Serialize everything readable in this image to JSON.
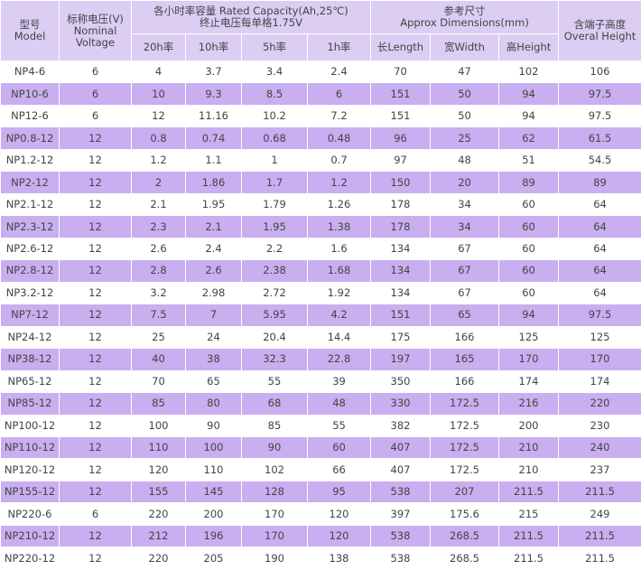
{
  "header": {
    "model": [
      "型号",
      "Model"
    ],
    "voltage": [
      "标称电压(V)",
      "Nominal",
      "Voltage"
    ],
    "capacity": [
      "各小时率容量 Rated Capacity(Ah,25℃)",
      "终止电压每单格1.75V"
    ],
    "dimensions": [
      "参考尺寸",
      "Approx Dimensions(mm)"
    ],
    "subheaders": [
      "20h率",
      "10h率",
      "5h率",
      "1h率",
      "长Length",
      "宽Width",
      "高Height"
    ],
    "overall": [
      "含端子高度",
      "Overal Height"
    ]
  },
  "table": {
    "rows": [
      [
        "NP4-6",
        "6",
        "4",
        "3.7",
        "3.4",
        "2.4",
        "70",
        "47",
        "102",
        "106"
      ],
      [
        "NP10-6",
        "6",
        "10",
        "9.3",
        "8.5",
        "6",
        "151",
        "50",
        "94",
        "97.5"
      ],
      [
        "NP12-6",
        "6",
        "12",
        "11.16",
        "10.2",
        "7.2",
        "151",
        "50",
        "94",
        "97.5"
      ],
      [
        "NP0.8-12",
        "12",
        "0.8",
        "0.74",
        "0.68",
        "0.48",
        "96",
        "25",
        "62",
        "61.5"
      ],
      [
        "NP1.2-12",
        "12",
        "1.2",
        "1.1",
        "1",
        "0.7",
        "97",
        "48",
        "51",
        "54.5"
      ],
      [
        "NP2-12",
        "12",
        "2",
        "1.86",
        "1.7",
        "1.2",
        "150",
        "20",
        "89",
        "89"
      ],
      [
        "NP2.1-12",
        "12",
        "2.1",
        "1.95",
        "1.79",
        "1.26",
        "178",
        "34",
        "60",
        "64"
      ],
      [
        "NP2.3-12",
        "12",
        "2.3",
        "2.1",
        "1.95",
        "1.38",
        "178",
        "34",
        "60",
        "64"
      ],
      [
        "NP2.6-12",
        "12",
        "2.6",
        "2.4",
        "2.2",
        "1.6",
        "134",
        "67",
        "60",
        "64"
      ],
      [
        "NP2.8-12",
        "12",
        "2.8",
        "2.6",
        "2.38",
        "1.68",
        "134",
        "67",
        "60",
        "64"
      ],
      [
        "NP3.2-12",
        "12",
        "3.2",
        "2.98",
        "2.72",
        "1.92",
        "134",
        "67",
        "60",
        "64"
      ],
      [
        "NP7-12",
        "12",
        "7.5",
        "7",
        "5.95",
        "4.2",
        "151",
        "65",
        "94",
        "97.5"
      ],
      [
        "NP24-12",
        "12",
        "25",
        "24",
        "20.4",
        "14.4",
        "175",
        "166",
        "125",
        "125"
      ],
      [
        "NP38-12",
        "12",
        "40",
        "38",
        "32.3",
        "22.8",
        "197",
        "165",
        "170",
        "170"
      ],
      [
        "NP65-12",
        "12",
        "70",
        "65",
        "55",
        "39",
        "350",
        "166",
        "174",
        "174"
      ],
      [
        "NP85-12",
        "12",
        "85",
        "80",
        "68",
        "48",
        "330",
        "172.5",
        "216",
        "220"
      ],
      [
        "NP100-12",
        "12",
        "100",
        "90",
        "85",
        "55",
        "382",
        "172.5",
        "200",
        "230"
      ],
      [
        "NP110-12",
        "12",
        "110",
        "100",
        "90",
        "60",
        "407",
        "172.5",
        "210",
        "240"
      ],
      [
        "NP120-12",
        "12",
        "120",
        "110",
        "102",
        "66",
        "407",
        "172.5",
        "210",
        "237"
      ],
      [
        "NP155-12",
        "12",
        "155",
        "145",
        "128",
        "95",
        "538",
        "207",
        "211.5",
        "211.5"
      ],
      [
        "NP220-6",
        "6",
        "220",
        "200",
        "170",
        "120",
        "397",
        "175.6",
        "215",
        "249"
      ],
      [
        "NP210-12",
        "12",
        "212",
        "196",
        "170",
        "120",
        "538",
        "268.5",
        "211.5",
        "211.5"
      ],
      [
        "NP220-12",
        "12",
        "220",
        "205",
        "190",
        "138",
        "538",
        "268.5",
        "211.5",
        "211.5"
      ]
    ]
  }
}
